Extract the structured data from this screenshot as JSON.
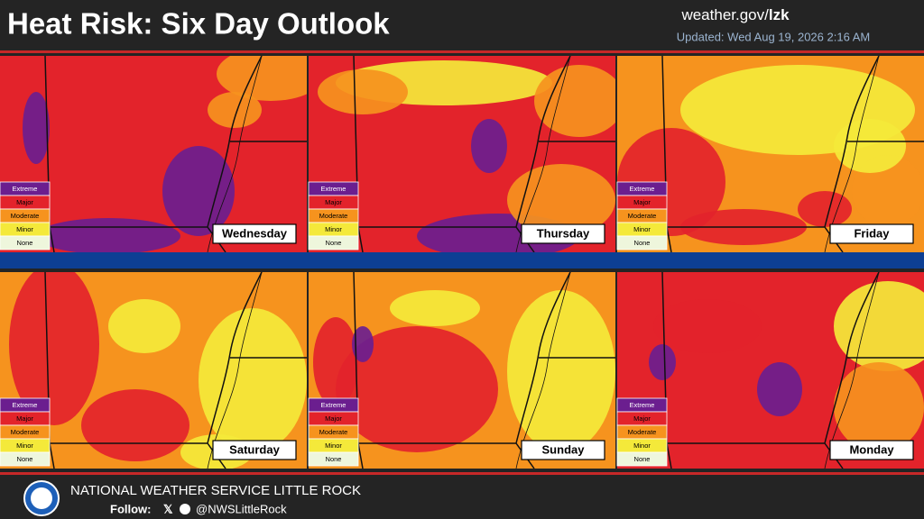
{
  "header": {
    "title": "Heat Risk: Six Day Outlook",
    "site_domain": "weather.gov/",
    "site_office": "lzk",
    "updated": "Updated: Wed Aug 19, 2026 2:16 AM"
  },
  "legend": {
    "levels": [
      {
        "label": "Extreme",
        "color": "#6b1e8f"
      },
      {
        "label": "Major",
        "color": "#e3232b"
      },
      {
        "label": "Moderate",
        "color": "#f6931e"
      },
      {
        "label": "Minor",
        "color": "#f4e93a"
      },
      {
        "label": "None",
        "color": "#eef6dc"
      }
    ]
  },
  "panels": [
    {
      "day": "Wednesday"
    },
    {
      "day": "Thursday"
    },
    {
      "day": "Friday"
    },
    {
      "day": "Saturday"
    },
    {
      "day": "Sunday"
    },
    {
      "day": "Monday"
    }
  ],
  "footer": {
    "office": "NATIONAL WEATHER SERVICE LITTLE ROCK",
    "follow": "Follow:",
    "handle": "@NWSLittleRock"
  }
}
